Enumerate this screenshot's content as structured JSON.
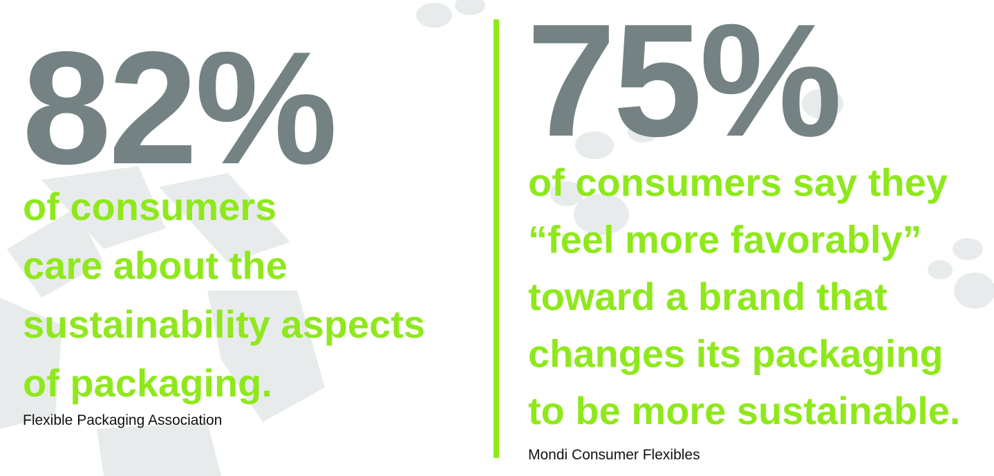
{
  "left": {
    "stat": "82%",
    "lines": [
      "of consumers",
      "care about the",
      "sustainability aspects",
      "of packaging."
    ],
    "source": "Flexible Packaging Association"
  },
  "right": {
    "stat": "75%",
    "lines": [
      "of consumers say they",
      "“feel more favorably”",
      "toward a brand that",
      "changes its packaging",
      "to be more sustainable."
    ],
    "source": "Mondi Consumer Flexibles"
  }
}
